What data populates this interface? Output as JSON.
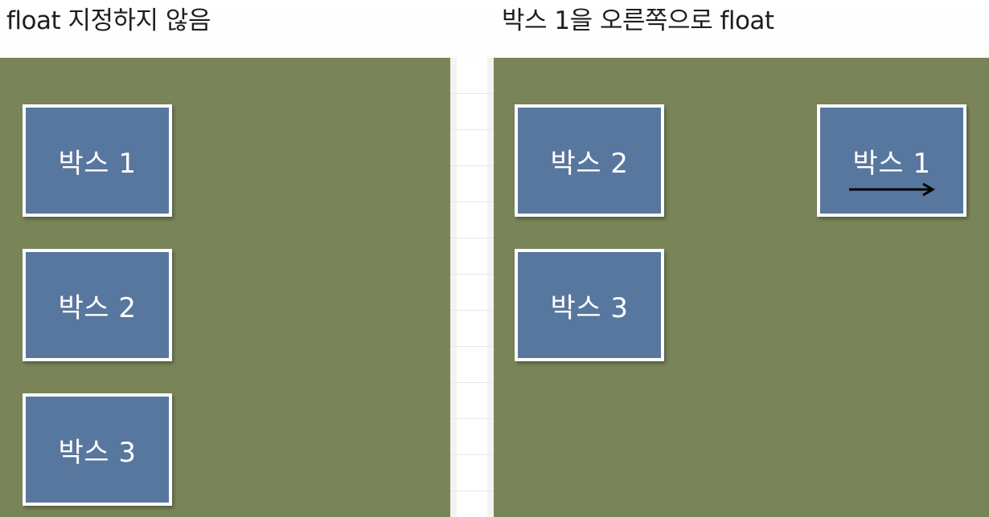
{
  "titles": {
    "left": "float 지정하지 않음",
    "right": "박스 1을 오른쪽으로 float"
  },
  "left_panel": {
    "boxes": [
      {
        "label": "박스 1"
      },
      {
        "label": "박스 2"
      },
      {
        "label": "박스 3"
      }
    ]
  },
  "right_panel": {
    "boxes": [
      {
        "label": "박스 2"
      },
      {
        "label": "박스 3"
      },
      {
        "label": "박스 1",
        "arrow": "right-arrow-icon"
      }
    ]
  },
  "colors": {
    "panel": "#7a8459",
    "box": "#58779e",
    "box_border": "#ffffff",
    "text": "#ffffff"
  }
}
